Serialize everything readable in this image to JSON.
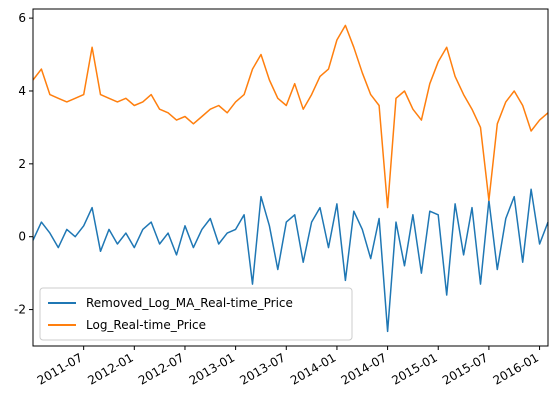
{
  "chart_data": {
    "type": "line",
    "x": [
      "2011-01",
      "2011-02",
      "2011-03",
      "2011-04",
      "2011-05",
      "2011-06",
      "2011-07",
      "2011-08",
      "2011-09",
      "2011-10",
      "2011-11",
      "2011-12",
      "2012-01",
      "2012-02",
      "2012-03",
      "2012-04",
      "2012-05",
      "2012-06",
      "2012-07",
      "2012-08",
      "2012-09",
      "2012-10",
      "2012-11",
      "2012-12",
      "2013-01",
      "2013-02",
      "2013-03",
      "2013-04",
      "2013-05",
      "2013-06",
      "2013-07",
      "2013-08",
      "2013-09",
      "2013-10",
      "2013-11",
      "2013-12",
      "2014-01",
      "2014-02",
      "2014-03",
      "2014-04",
      "2014-05",
      "2014-06",
      "2014-07",
      "2014-08",
      "2014-09",
      "2014-10",
      "2014-11",
      "2014-12",
      "2015-01",
      "2015-02",
      "2015-03",
      "2015-04",
      "2015-05",
      "2015-06",
      "2015-07",
      "2015-08",
      "2015-09",
      "2015-10",
      "2015-11",
      "2015-12",
      "2016-01",
      "2016-02"
    ],
    "series": [
      {
        "name": "Removed_Log_MA_Real-time_Price",
        "color": "#1f77b4",
        "values": [
          -0.1,
          0.4,
          0.1,
          -0.3,
          0.2,
          0.0,
          0.3,
          0.8,
          -0.4,
          0.2,
          -0.2,
          0.1,
          -0.3,
          0.2,
          0.4,
          -0.2,
          0.1,
          -0.5,
          0.3,
          -0.3,
          0.2,
          0.5,
          -0.2,
          0.1,
          0.2,
          0.6,
          -1.3,
          1.1,
          0.3,
          -0.9,
          0.4,
          0.6,
          -0.7,
          0.4,
          0.8,
          -0.3,
          0.9,
          -1.2,
          0.7,
          0.2,
          -0.6,
          0.5,
          -2.6,
          0.4,
          -0.8,
          0.6,
          -1.0,
          0.7,
          0.6,
          -1.6,
          0.9,
          -0.5,
          0.8,
          -1.3,
          1.0,
          -0.9,
          0.5,
          1.1,
          -0.7,
          1.3,
          -0.2,
          0.4
        ]
      },
      {
        "name": "Log_Real-time_Price",
        "color": "#ff7f0e",
        "values": [
          4.3,
          4.6,
          3.9,
          3.8,
          3.7,
          3.8,
          3.9,
          5.2,
          3.9,
          3.8,
          3.7,
          3.8,
          3.6,
          3.7,
          3.9,
          3.5,
          3.4,
          3.2,
          3.3,
          3.1,
          3.3,
          3.5,
          3.6,
          3.4,
          3.7,
          3.9,
          4.6,
          5.0,
          4.3,
          3.8,
          3.6,
          4.2,
          3.5,
          3.9,
          4.4,
          4.6,
          5.4,
          5.8,
          5.2,
          4.5,
          3.9,
          3.6,
          0.8,
          3.8,
          4.0,
          3.5,
          3.2,
          4.2,
          4.8,
          5.2,
          4.4,
          3.9,
          3.5,
          3.0,
          1.0,
          3.1,
          3.7,
          4.0,
          3.6,
          2.9,
          3.2,
          3.4
        ]
      }
    ],
    "xlim": [
      "2011-01",
      "2016-02"
    ],
    "xticks": [
      "2011-07",
      "2012-01",
      "2012-07",
      "2013-01",
      "2013-07",
      "2014-01",
      "2014-07",
      "2015-01",
      "2015-07",
      "2016-01"
    ],
    "ylim": [
      -3,
      6.25
    ],
    "yticks": [
      -2,
      0,
      2,
      4,
      6
    ],
    "legend": "lower left"
  }
}
